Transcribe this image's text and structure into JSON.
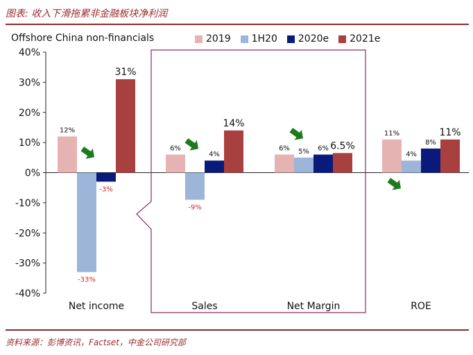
{
  "header": {
    "title": "图表: 收入下滑拖累非金融板块净利润"
  },
  "footer": {
    "source": "资料来源：彭博资讯，Factset，中金公司研究部"
  },
  "chart_data": {
    "type": "bar",
    "title": "Offshore China non-financials",
    "categories": [
      "Net income",
      "Sales",
      "Net Margin",
      "ROE"
    ],
    "series": [
      {
        "name": "2019",
        "color": "#e6b3b3",
        "values": [
          12,
          6,
          6,
          11
        ],
        "labels": [
          "12%",
          "6%",
          "6%",
          "11%"
        ]
      },
      {
        "name": "1H20",
        "color": "#9db5d9",
        "values": [
          -33,
          -9,
          5,
          4
        ],
        "labels": [
          "-33%",
          "-9%",
          "5%",
          "4%"
        ]
      },
      {
        "name": "2020e",
        "color": "#0a1a7a",
        "values": [
          -3,
          4,
          6,
          8
        ],
        "labels": [
          "-3%",
          "4%",
          "6%",
          "8%"
        ]
      },
      {
        "name": "2021e",
        "color": "#a94040",
        "values": [
          31,
          14,
          6.5,
          11
        ],
        "labels": [
          "31%",
          "14%",
          "6.5%",
          "11%"
        ]
      }
    ],
    "ylim": [
      -40,
      40
    ],
    "yticks": [
      40,
      30,
      20,
      10,
      0,
      -10,
      -20,
      -30,
      -40
    ],
    "ytick_labels": [
      "40%",
      "30%",
      "20%",
      "10%",
      "0%",
      "-10%",
      "-20%",
      "-30%",
      "-40%"
    ],
    "annotations": {
      "highlight_box_groups": [
        "Sales",
        "Net Margin"
      ],
      "arrows": [
        {
          "group": "Net income",
          "direction": "down"
        },
        {
          "group": "Sales",
          "direction": "down"
        },
        {
          "group": "Net Margin",
          "direction": "down"
        },
        {
          "group": "ROE",
          "direction": "down"
        }
      ]
    },
    "colors": {
      "negative_label": "#d42a2a",
      "highlight_box": "#8b2a6a",
      "arrow": "#1e7a1e"
    }
  }
}
